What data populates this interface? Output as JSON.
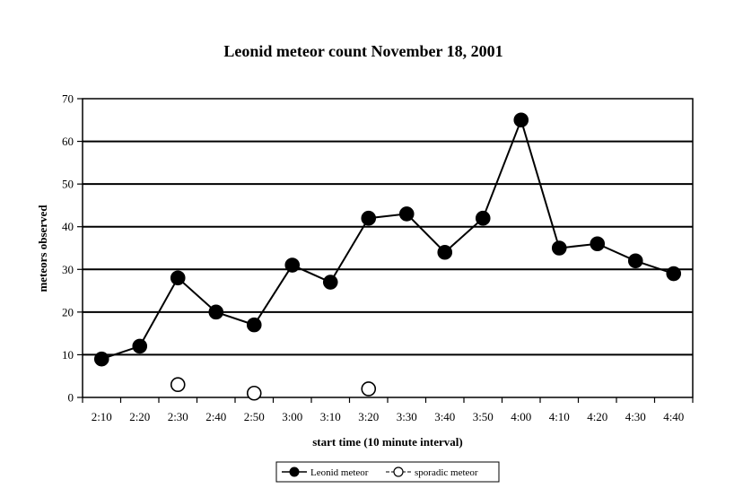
{
  "chart_data": {
    "type": "line",
    "title": "Leonid meteor count November 18, 2001",
    "xlabel": "start time (10 minute interval)",
    "ylabel": "meteors observed",
    "categories": [
      "2:10",
      "2:20",
      "2:30",
      "2:40",
      "2:50",
      "3:00",
      "3:10",
      "3:20",
      "3:30",
      "3:40",
      "3:50",
      "4:00",
      "4:10",
      "4:20",
      "4:30",
      "4:40"
    ],
    "ylim": [
      0,
      70
    ],
    "yticks": [
      0,
      10,
      20,
      30,
      40,
      50,
      60,
      70
    ],
    "grid": true,
    "legend_position": "bottom-center",
    "series": [
      {
        "name": "Leonid meteor",
        "marker": "filled-circle",
        "line": true,
        "color": "#000000",
        "values": [
          9,
          12,
          28,
          20,
          17,
          31,
          27,
          42,
          43,
          34,
          42,
          65,
          35,
          36,
          32,
          29
        ]
      },
      {
        "name": "sporadic meteor",
        "marker": "open-circle",
        "line": false,
        "color": "#000000",
        "values": [
          null,
          null,
          3,
          null,
          1,
          null,
          null,
          2,
          null,
          null,
          null,
          null,
          null,
          null,
          null,
          null
        ]
      }
    ]
  }
}
